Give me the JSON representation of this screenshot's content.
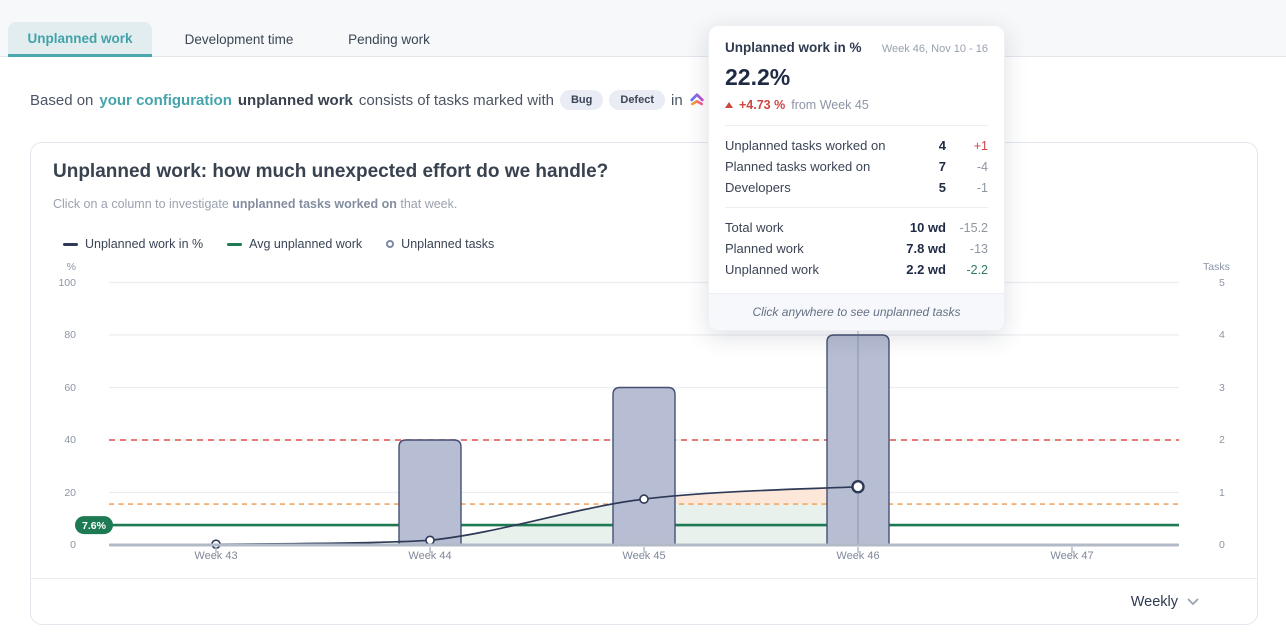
{
  "tabs": [
    {
      "label": "Unplanned work",
      "active": true
    },
    {
      "label": "Development time",
      "active": false
    },
    {
      "label": "Pending work",
      "active": false
    }
  ],
  "description": {
    "text_prefix": "Based on",
    "link_text": "your configuration",
    "bold_text": "unplanned work",
    "text_middle": "consists of tasks marked with",
    "badges": [
      "Bug",
      "Defect"
    ],
    "text_suffix": "in",
    "app_icon": "clickup-logo"
  },
  "card": {
    "title": "Unplanned work: how much unexpected effort do we handle?",
    "subtitle_prefix": "Click on a column to investigate",
    "subtitle_bold": "unplanned tasks worked on",
    "subtitle_suffix": "that week.",
    "legend": [
      {
        "label": "Unplanned work in %",
        "marker": "line",
        "color": "#2e3a57"
      },
      {
        "label": "Avg unplanned work",
        "marker": "line",
        "color": "#1e7a52"
      },
      {
        "label": "Unplanned tasks",
        "marker": "circle",
        "color": "#7e88a3"
      }
    ],
    "period_selector": {
      "value": "Weekly",
      "icon": "chevron-down-icon"
    }
  },
  "chart_data": {
    "type": "bar+line",
    "categories": [
      "Week 43",
      "Week 44",
      "Week 45",
      "Week 46",
      "Week 47"
    ],
    "series": [
      {
        "name": "Unplanned work in %",
        "type": "line",
        "axis": "left",
        "values": [
          0.3,
          1.8,
          17.5,
          22.2,
          null
        ],
        "color": "#2e3a57"
      },
      {
        "name": "Unplanned tasks",
        "type": "bar",
        "axis": "right",
        "values": [
          0,
          2,
          3,
          4,
          null
        ],
        "color": "#b7bdd2"
      }
    ],
    "avg_reference": {
      "name": "Avg unplanned work",
      "value": 7.6,
      "label": "7.6%",
      "color": "#1e7a52"
    },
    "thresholds": [
      {
        "value": 40,
        "style": "dashed",
        "color": "#e0524a"
      },
      {
        "value": 15.6,
        "style": "dashed",
        "color": "#f4a662"
      }
    ],
    "left_axis": {
      "label": "%",
      "ticks": [
        100,
        80,
        60,
        40,
        20,
        0
      ],
      "range": [
        0,
        100
      ]
    },
    "right_axis": {
      "label": "Tasks",
      "ticks": [
        5,
        4,
        3,
        2,
        1,
        0
      ],
      "range": [
        0,
        5
      ]
    },
    "selected_category": "Week 46",
    "grid": true,
    "fills": {
      "below_threshold": "#e9f1ec",
      "above_threshold": "#fde7d8"
    },
    "colors": {
      "bar_fill": "#b7bdd2",
      "bar_border": "#454f73",
      "selected_column": "#67708d"
    }
  },
  "tooltip": {
    "title": "Unplanned work in %",
    "period": "Week 46, Nov 10 - 16",
    "value": "22.2%",
    "delta": "+4.73 %",
    "delta_direction": "up",
    "delta_color": "#cf4541",
    "delta_suffix": "from Week 45",
    "rows": [
      {
        "label": "Unplanned tasks worked on",
        "value": "4",
        "delta": "+1",
        "delta_color": "#cf4541"
      },
      {
        "label": "Planned tasks worked on",
        "value": "7",
        "delta": "-4",
        "delta_color": "#8f96a3"
      },
      {
        "label": "Developers",
        "value": "5",
        "delta": "-1",
        "delta_color": "#8f96a3"
      }
    ],
    "rows2": [
      {
        "label": "Total work",
        "value": "10 wd",
        "delta": "-15.2",
        "delta_color": "#8f96a3"
      },
      {
        "label": "Planned work",
        "value": "7.8 wd",
        "delta": "-13",
        "delta_color": "#8f96a3"
      },
      {
        "label": "Unplanned work",
        "value": "2.2 wd",
        "delta": "-2.2",
        "delta_color": "#2e7d5b"
      }
    ],
    "footer": "Click anywhere to see unplanned tasks"
  }
}
